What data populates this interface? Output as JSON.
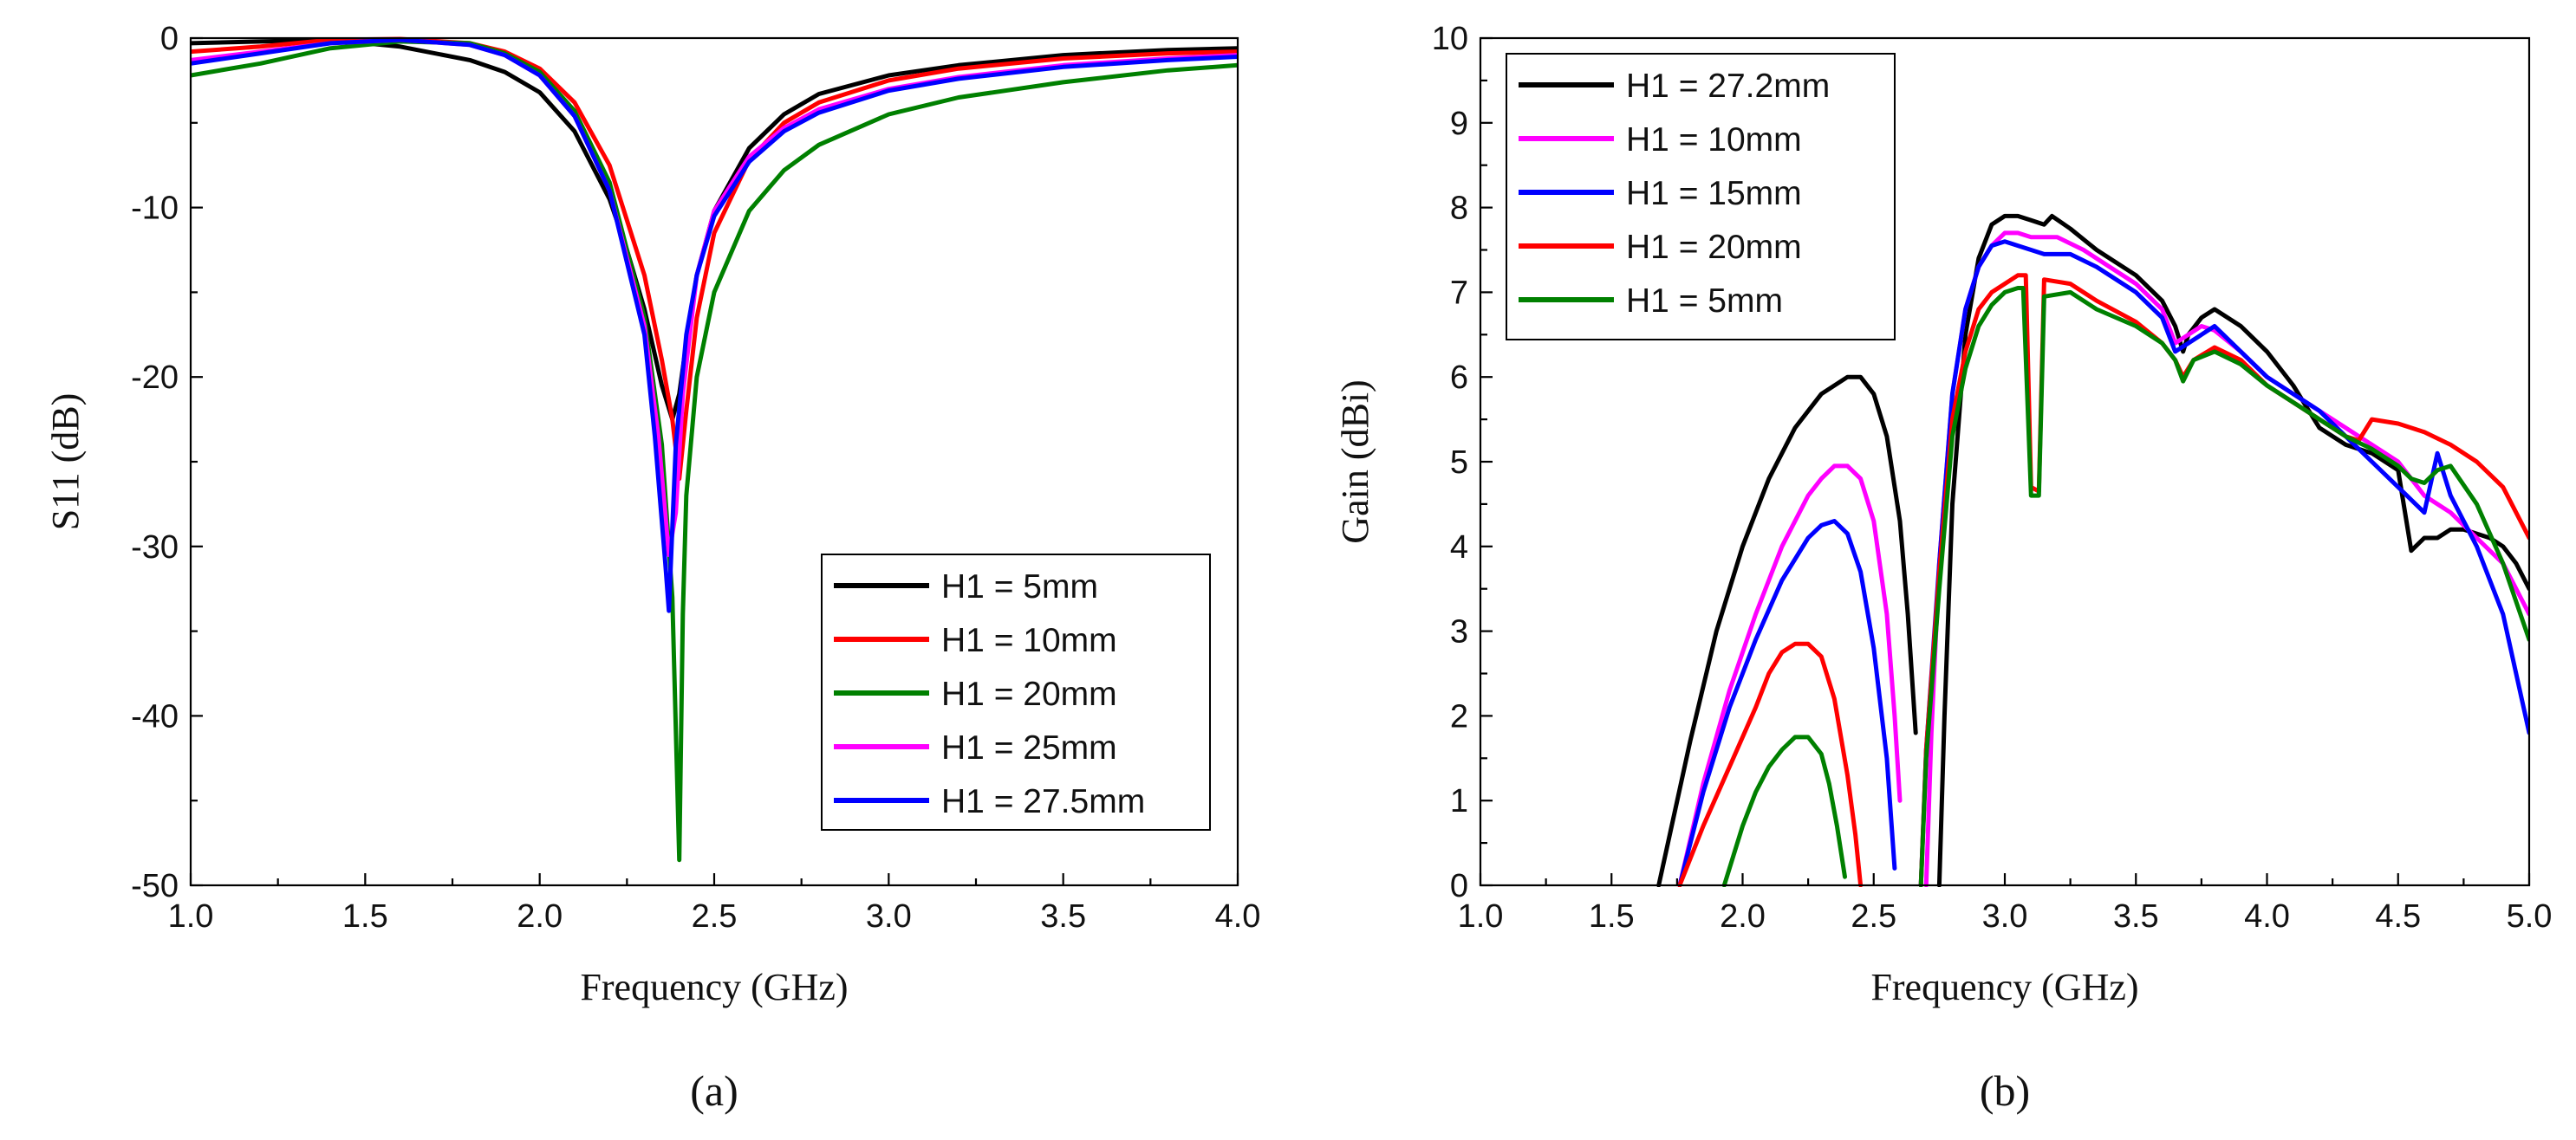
{
  "chart_data": [
    {
      "panel": "(a)",
      "type": "line",
      "xlabel": "Frequency (GHz)",
      "ylabel": "S11 (dB)",
      "xlim": [
        1.0,
        4.0
      ],
      "ylim": [
        -50,
        0
      ],
      "xticks": [
        "1.0",
        "1.5",
        "2.0",
        "2.5",
        "3.0",
        "3.5",
        "4.0"
      ],
      "yticks": [
        "0",
        "-10",
        "-20",
        "-30",
        "-40",
        "-50"
      ],
      "xtick_values": [
        1.0,
        1.5,
        2.0,
        2.5,
        3.0,
        3.5,
        4.0
      ],
      "ytick_values": [
        0,
        -10,
        -20,
        -30,
        -40,
        -50
      ],
      "legend_position": "bottom-right",
      "series": [
        {
          "name": "H1 = 5mm",
          "color": "#000000",
          "x": [
            1.0,
            1.2,
            1.4,
            1.6,
            1.8,
            1.9,
            2.0,
            2.1,
            2.2,
            2.25,
            2.3,
            2.35,
            2.38,
            2.4,
            2.42,
            2.45,
            2.5,
            2.6,
            2.7,
            2.8,
            3.0,
            3.2,
            3.5,
            3.8,
            4.0
          ],
          "y": [
            -0.3,
            -0.2,
            -0.1,
            -0.5,
            -1.3,
            -2.0,
            -3.2,
            -5.5,
            -9.5,
            -12.5,
            -16.0,
            -20.5,
            -22.5,
            -21.0,
            -18.0,
            -14.0,
            -10.2,
            -6.5,
            -4.5,
            -3.3,
            -2.2,
            -1.6,
            -1.0,
            -0.7,
            -0.6
          ]
        },
        {
          "name": "H1 = 10mm",
          "color": "#ff0000",
          "x": [
            1.0,
            1.2,
            1.4,
            1.6,
            1.8,
            1.9,
            2.0,
            2.1,
            2.2,
            2.3,
            2.35,
            2.38,
            2.4,
            2.42,
            2.45,
            2.5,
            2.6,
            2.7,
            2.8,
            3.0,
            3.2,
            3.5,
            3.8,
            4.0
          ],
          "y": [
            -0.8,
            -0.5,
            -0.1,
            -0.05,
            -0.3,
            -0.8,
            -1.8,
            -3.8,
            -7.5,
            -14.0,
            -19.0,
            -22.5,
            -26.0,
            -22.0,
            -16.5,
            -11.5,
            -7.2,
            -5.0,
            -3.8,
            -2.5,
            -1.8,
            -1.2,
            -0.9,
            -0.8
          ]
        },
        {
          "name": "H1 = 20mm",
          "color": "#008000",
          "x": [
            1.0,
            1.2,
            1.4,
            1.6,
            1.8,
            1.9,
            2.0,
            2.1,
            2.2,
            2.3,
            2.35,
            2.38,
            2.4,
            2.41,
            2.42,
            2.45,
            2.5,
            2.6,
            2.7,
            2.8,
            3.0,
            3.2,
            3.5,
            3.8,
            4.0
          ],
          "y": [
            -2.2,
            -1.5,
            -0.6,
            -0.2,
            -0.3,
            -0.9,
            -2.0,
            -4.3,
            -8.5,
            -16.5,
            -24.0,
            -33.0,
            -48.5,
            -34.0,
            -27.0,
            -20.0,
            -15.0,
            -10.2,
            -7.8,
            -6.3,
            -4.5,
            -3.5,
            -2.6,
            -1.9,
            -1.6
          ]
        },
        {
          "name": "H1 = 25mm",
          "color": "#ff00ff",
          "x": [
            1.0,
            1.2,
            1.4,
            1.6,
            1.8,
            1.9,
            2.0,
            2.1,
            2.2,
            2.3,
            2.34,
            2.37,
            2.39,
            2.41,
            2.45,
            2.5,
            2.6,
            2.7,
            2.8,
            3.0,
            3.2,
            3.5,
            3.8,
            4.0
          ],
          "y": [
            -1.3,
            -0.8,
            -0.3,
            -0.1,
            -0.4,
            -1.0,
            -2.2,
            -4.6,
            -9.0,
            -17.0,
            -23.5,
            -30.5,
            -28.0,
            -21.0,
            -14.0,
            -10.2,
            -7.0,
            -5.3,
            -4.2,
            -3.0,
            -2.3,
            -1.6,
            -1.2,
            -1.0
          ]
        },
        {
          "name": "H1 = 27.5mm",
          "color": "#0000ff",
          "x": [
            1.0,
            1.2,
            1.4,
            1.6,
            1.8,
            1.9,
            2.0,
            2.1,
            2.2,
            2.3,
            2.33,
            2.36,
            2.37,
            2.39,
            2.42,
            2.45,
            2.5,
            2.6,
            2.7,
            2.8,
            3.0,
            3.2,
            3.5,
            3.8,
            4.0
          ],
          "y": [
            -1.5,
            -0.9,
            -0.3,
            -0.1,
            -0.4,
            -1.0,
            -2.2,
            -4.6,
            -9.0,
            -17.5,
            -23.5,
            -31.0,
            -33.8,
            -24.0,
            -17.5,
            -14.0,
            -10.5,
            -7.3,
            -5.5,
            -4.4,
            -3.1,
            -2.4,
            -1.7,
            -1.3,
            -1.1
          ]
        }
      ]
    },
    {
      "panel": "(b)",
      "type": "line",
      "xlabel": "Frequency (GHz)",
      "ylabel": "Gain (dBi)",
      "xlim": [
        1.0,
        5.0
      ],
      "ylim": [
        0,
        10
      ],
      "xticks": [
        "1.0",
        "1.5",
        "2.0",
        "2.5",
        "3.0",
        "3.5",
        "4.0",
        "4.5",
        "5.0"
      ],
      "yticks": [
        "0",
        "1",
        "2",
        "3",
        "4",
        "5",
        "6",
        "7",
        "8",
        "9",
        "10"
      ],
      "xtick_values": [
        1.0,
        1.5,
        2.0,
        2.5,
        3.0,
        3.5,
        4.0,
        4.5,
        5.0
      ],
      "ytick_values": [
        0,
        1,
        2,
        3,
        4,
        5,
        6,
        7,
        8,
        9,
        10
      ],
      "legend_position": "top-left",
      "series": [
        {
          "name": "H1 = 27.2mm",
          "color": "#000000",
          "x": [
            1.68,
            1.8,
            1.9,
            2.0,
            2.1,
            2.2,
            2.3,
            2.4,
            2.45,
            2.5,
            2.55,
            2.6,
            2.63,
            2.66,
            null,
            2.75,
            2.77,
            2.8,
            2.85,
            2.9,
            2.95,
            3.0,
            3.05,
            3.1,
            3.15,
            3.18,
            3.25,
            3.35,
            3.5,
            3.6,
            3.65,
            3.68,
            3.7,
            3.75,
            3.8,
            3.9,
            4.0,
            4.1,
            4.2,
            4.3,
            4.4,
            4.5,
            4.55,
            4.6,
            4.65,
            4.7,
            4.75,
            4.8,
            4.85,
            4.9,
            4.95,
            5.0
          ],
          "y": [
            0.0,
            1.7,
            3.0,
            4.0,
            4.8,
            5.4,
            5.8,
            6.0,
            6.0,
            5.8,
            5.3,
            4.3,
            3.2,
            1.8,
            null,
            0.0,
            2.0,
            4.5,
            6.5,
            7.4,
            7.8,
            7.9,
            7.9,
            7.85,
            7.8,
            7.9,
            7.75,
            7.5,
            7.2,
            6.9,
            6.6,
            6.3,
            6.5,
            6.7,
            6.8,
            6.6,
            6.3,
            5.9,
            5.4,
            5.2,
            5.1,
            4.9,
            3.95,
            4.1,
            4.1,
            4.2,
            4.2,
            4.15,
            4.1,
            4.0,
            3.8,
            3.5
          ]
        },
        {
          "name": "H1 = 10mm",
          "color": "#ff00ff",
          "x": [
            1.76,
            1.85,
            1.95,
            2.05,
            2.15,
            2.25,
            2.3,
            2.35,
            2.4,
            2.45,
            2.5,
            2.55,
            2.58,
            2.6,
            null,
            2.7,
            2.72,
            2.75,
            2.8,
            2.85,
            2.9,
            2.95,
            3.0,
            3.05,
            3.1,
            3.2,
            3.3,
            3.4,
            3.5,
            3.6,
            3.65,
            3.7,
            3.75,
            3.8,
            3.9,
            4.0,
            4.1,
            4.2,
            4.3,
            4.4,
            4.5,
            4.55,
            4.6,
            4.65,
            4.7,
            4.8,
            4.9,
            5.0
          ],
          "y": [
            0.0,
            1.2,
            2.3,
            3.2,
            4.0,
            4.6,
            4.8,
            4.95,
            4.95,
            4.8,
            4.3,
            3.2,
            2.0,
            1.0,
            null,
            0.0,
            1.8,
            3.8,
            5.8,
            6.8,
            7.3,
            7.55,
            7.7,
            7.7,
            7.65,
            7.65,
            7.5,
            7.3,
            7.1,
            6.8,
            6.4,
            6.5,
            6.6,
            6.55,
            6.3,
            6.0,
            5.8,
            5.6,
            5.4,
            5.2,
            5.0,
            4.8,
            4.6,
            4.5,
            4.4,
            4.1,
            3.8,
            3.2
          ]
        },
        {
          "name": "H1 = 15mm",
          "color": "#0000ff",
          "x": [
            1.76,
            1.85,
            1.95,
            2.05,
            2.15,
            2.25,
            2.3,
            2.35,
            2.4,
            2.45,
            2.5,
            2.55,
            2.58,
            null,
            2.68,
            2.7,
            2.75,
            2.8,
            2.85,
            2.9,
            2.95,
            3.0,
            3.05,
            3.1,
            3.15,
            3.25,
            3.35,
            3.5,
            3.6,
            3.65,
            3.7,
            3.75,
            3.8,
            3.9,
            4.0,
            4.1,
            4.2,
            4.3,
            4.4,
            4.5,
            4.6,
            4.65,
            4.7,
            4.8,
            4.9,
            5.0
          ],
          "y": [
            0.0,
            1.1,
            2.1,
            2.9,
            3.6,
            4.1,
            4.25,
            4.3,
            4.15,
            3.7,
            2.8,
            1.5,
            0.2,
            null,
            0.0,
            1.6,
            3.8,
            5.8,
            6.8,
            7.3,
            7.55,
            7.6,
            7.55,
            7.5,
            7.45,
            7.45,
            7.3,
            7.0,
            6.7,
            6.3,
            6.4,
            6.5,
            6.6,
            6.3,
            6.0,
            5.8,
            5.6,
            5.3,
            5.0,
            4.7,
            4.4,
            5.1,
            4.6,
            4.0,
            3.2,
            1.8
          ]
        },
        {
          "name": "H1 = 20mm",
          "color": "#ff0000",
          "x": [
            1.76,
            1.85,
            1.95,
            2.05,
            2.1,
            2.15,
            2.2,
            2.25,
            2.3,
            2.35,
            2.4,
            2.43,
            2.45,
            null,
            2.68,
            2.7,
            2.75,
            2.8,
            2.85,
            2.9,
            2.95,
            3.0,
            3.05,
            3.08,
            3.1,
            3.13,
            3.15,
            3.25,
            3.35,
            3.5,
            3.6,
            3.65,
            3.68,
            3.72,
            3.8,
            3.9,
            4.0,
            4.1,
            4.2,
            4.3,
            4.35,
            4.4,
            4.5,
            4.6,
            4.7,
            4.8,
            4.9,
            5.0
          ],
          "y": [
            0.0,
            0.7,
            1.4,
            2.1,
            2.5,
            2.75,
            2.85,
            2.85,
            2.7,
            2.2,
            1.3,
            0.6,
            0.0,
            null,
            0.0,
            1.6,
            3.7,
            5.5,
            6.3,
            6.8,
            7.0,
            7.1,
            7.2,
            7.2,
            4.7,
            4.65,
            7.15,
            7.1,
            6.9,
            6.65,
            6.4,
            6.2,
            6.0,
            6.2,
            6.35,
            6.2,
            5.9,
            5.7,
            5.5,
            5.3,
            5.25,
            5.5,
            5.45,
            5.35,
            5.2,
            5.0,
            4.7,
            4.1
          ]
        },
        {
          "name": "H1 = 5mm",
          "color": "#008000",
          "x": [
            1.93,
            2.0,
            2.05,
            2.1,
            2.15,
            2.2,
            2.25,
            2.3,
            2.33,
            2.36,
            2.39,
            null,
            2.68,
            2.7,
            2.75,
            2.8,
            2.85,
            2.9,
            2.95,
            3.0,
            3.05,
            3.07,
            3.1,
            3.13,
            3.15,
            3.25,
            3.35,
            3.5,
            3.6,
            3.65,
            3.68,
            3.72,
            3.8,
            3.9,
            4.0,
            4.1,
            4.2,
            4.3,
            4.4,
            4.5,
            4.55,
            4.6,
            4.65,
            4.7,
            4.8,
            4.9,
            5.0
          ],
          "y": [
            0.0,
            0.7,
            1.1,
            1.4,
            1.6,
            1.75,
            1.75,
            1.55,
            1.2,
            0.7,
            0.1,
            null,
            0.0,
            1.5,
            3.5,
            5.3,
            6.1,
            6.6,
            6.85,
            7.0,
            7.05,
            7.05,
            4.6,
            4.6,
            6.95,
            7.0,
            6.8,
            6.6,
            6.4,
            6.2,
            5.95,
            6.2,
            6.3,
            6.15,
            5.9,
            5.7,
            5.5,
            5.3,
            5.15,
            4.95,
            4.8,
            4.75,
            4.9,
            4.95,
            4.5,
            3.8,
            2.9
          ]
        }
      ]
    }
  ]
}
